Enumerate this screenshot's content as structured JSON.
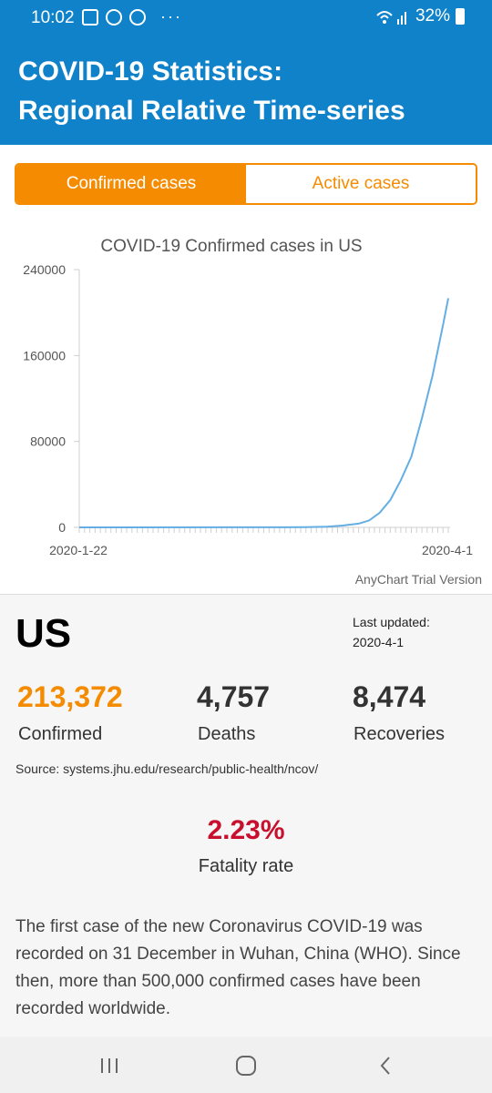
{
  "status_bar": {
    "time": "10:02",
    "overflow": "···",
    "battery": "32%",
    "icons": [
      "gallery-icon",
      "instagram-icon",
      "shield-icon",
      "wifi-icon",
      "signal-icon",
      "battery-icon"
    ]
  },
  "header": {
    "title_line1": "COVID-19 Statistics:",
    "title_line2": "Regional Relative Time-series",
    "color": "#0f82c9"
  },
  "tabs": [
    {
      "label": "Confirmed cases",
      "active": true
    },
    {
      "label": "Active cases",
      "active": false
    }
  ],
  "accent_color": "#f48b00",
  "chart_data": {
    "type": "line",
    "title": "COVID-19 Confirmed cases in US",
    "x_start_label": "2020-1-22",
    "x_end_label": "2020-4-1",
    "y_ticks": [
      "240000",
      "160000",
      "80000",
      "0"
    ],
    "ylim": [
      0,
      240000
    ],
    "watermark": "AnyChart Trial Version",
    "line_color": "#64aee3",
    "series": [
      {
        "x": [
          "2020-3-1",
          "2020-3-5",
          "2020-3-9",
          "2020-3-12",
          "2020-3-15",
          "2020-3-17",
          "2020-3-19",
          "2020-3-21",
          "2020-3-23",
          "2020-3-25",
          "2020-3-27",
          "2020-3-29",
          "2020-3-31",
          "2020-4-1"
        ],
        "values": [
          75,
          217,
          605,
          1663,
          3499,
          6421,
          13677,
          25489,
          43847,
          65778,
          101657,
          140886,
          188172,
          213372
        ]
      }
    ]
  },
  "summary": {
    "country": "US",
    "last_updated_label": "Last updated:",
    "last_updated_value": "2020-4-1",
    "confirmed_value": "213,372",
    "confirmed_label": "Confirmed",
    "deaths_value": "4,757",
    "deaths_label": "Deaths",
    "recoveries_value": "8,474",
    "recoveries_label": "Recoveries",
    "source": "Source: systems.jhu.edu/research/public-health/ncov/",
    "fatality_value": "2.23%",
    "fatality_label": "Fatality rate",
    "fatality_color": "#c8102e",
    "description": "The first case of the new Coronavirus COVID-19 was recorded on 31 December in Wuhan, China (WHO). Since then, more than 500,000 confirmed cases have been recorded worldwide."
  },
  "nav": {
    "icons": [
      "recent-apps-icon",
      "home-icon",
      "back-icon"
    ]
  }
}
